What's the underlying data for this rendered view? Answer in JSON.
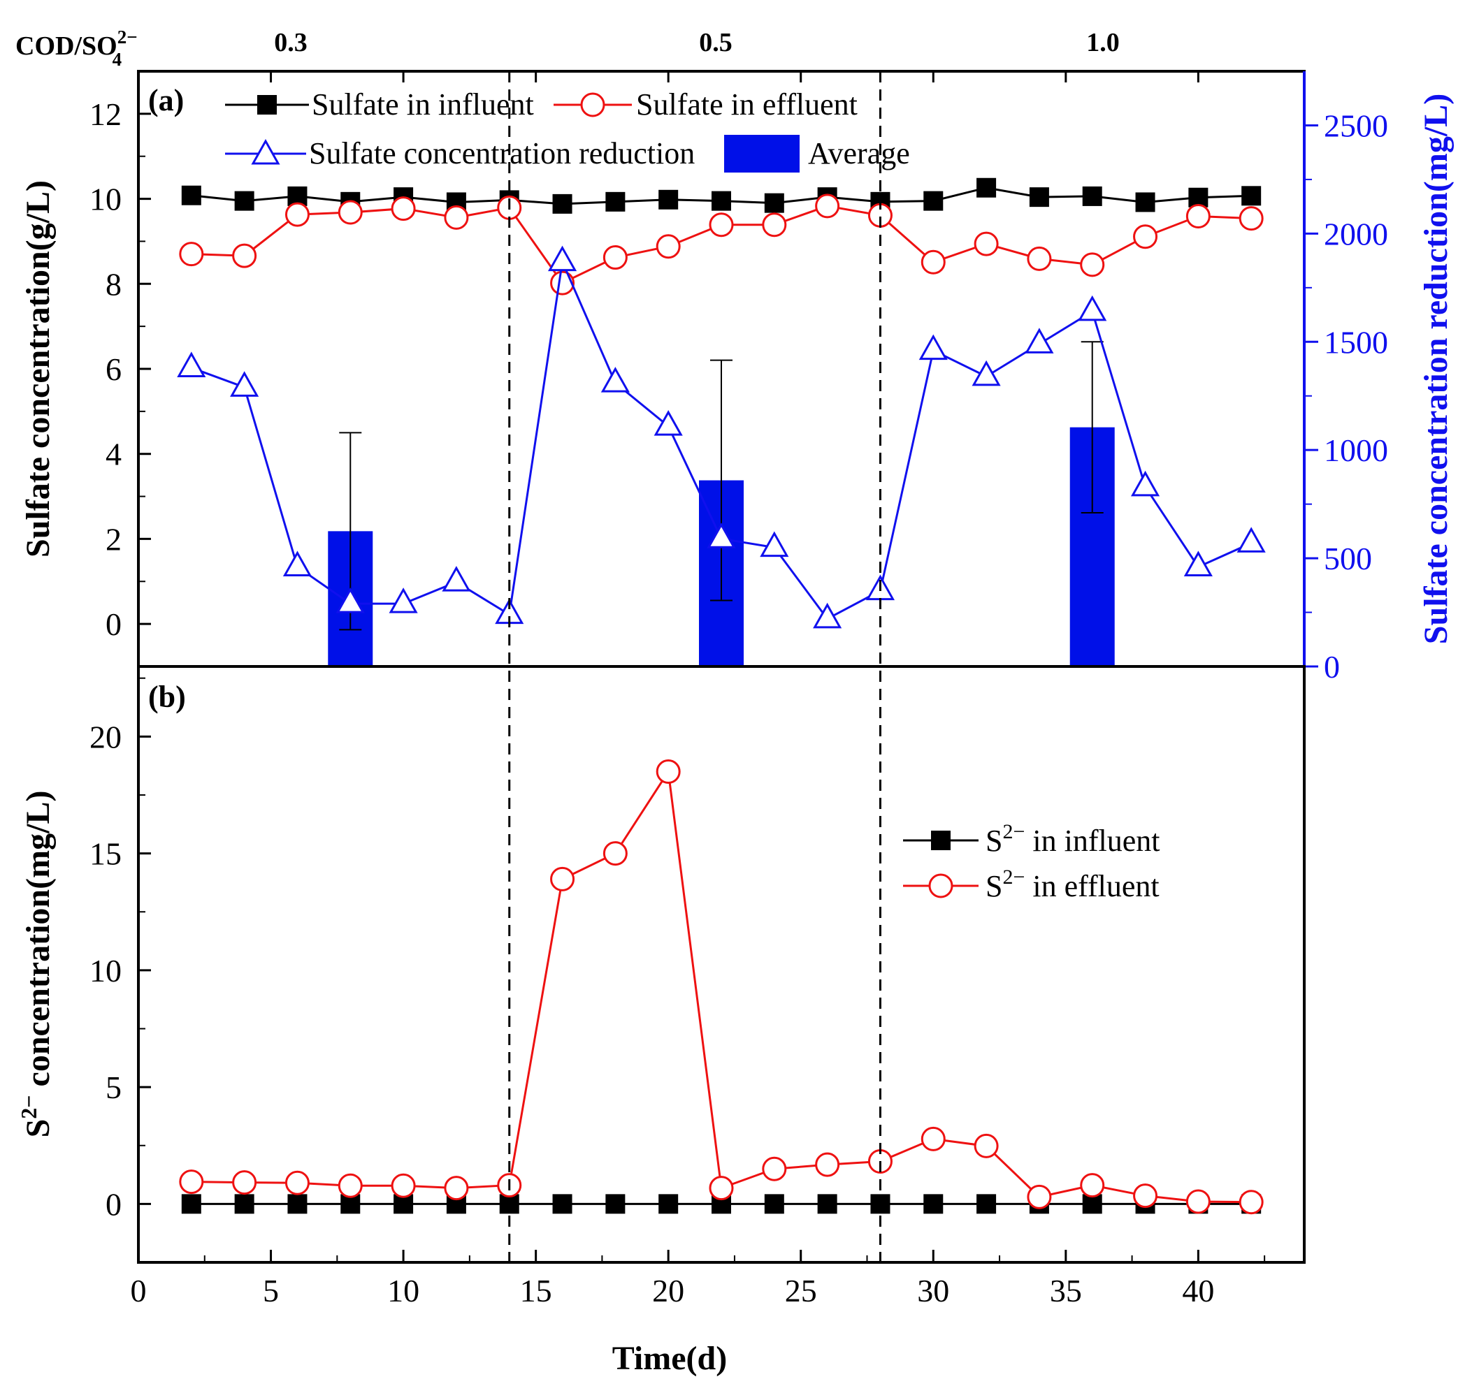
{
  "colors": {
    "influent": "#000000",
    "effluent": "#ee1111",
    "reduction": "#1010ee",
    "bar": "#0010e8",
    "frame": "#000000"
  },
  "ratio_header": {
    "label_main": "COD/SO",
    "label_sup": "2−",
    "label_sub": "4",
    "phases": [
      "0.3",
      "0.5",
      "1.0"
    ]
  },
  "chart_data": [
    {
      "id": "a",
      "panel_label": "(a)",
      "type": "line",
      "ylabel_left": "Sulfate concentration(g/L)",
      "ylabel_right": "Sulfate concentration reduction(mg/L)",
      "ylim_left": [
        -1,
        13
      ],
      "yticks_left": [
        0,
        2,
        4,
        6,
        8,
        10,
        12
      ],
      "ylim_right": [
        0,
        2750
      ],
      "yticks_right": [
        0,
        500,
        1000,
        1500,
        2000,
        2500
      ],
      "x": [
        2,
        4,
        6,
        8,
        10,
        12,
        14,
        16,
        18,
        20,
        22,
        24,
        26,
        28,
        30,
        32,
        34,
        36,
        38,
        40,
        42
      ],
      "series": [
        {
          "name": "Sulfate in influent",
          "axis": "left",
          "marker": "square",
          "values": [
            10.08,
            9.95,
            10.06,
            9.93,
            10.04,
            9.92,
            9.97,
            9.88,
            9.93,
            9.98,
            9.95,
            9.9,
            10.04,
            9.93,
            9.95,
            10.26,
            10.04,
            10.06,
            9.92,
            10.03,
            10.07
          ]
        },
        {
          "name": "Sulfate in effluent",
          "axis": "left",
          "marker": "circle",
          "values": [
            8.7,
            8.66,
            9.63,
            9.68,
            9.77,
            9.56,
            9.79,
            8.02,
            8.62,
            8.88,
            9.39,
            9.39,
            9.83,
            9.61,
            8.51,
            8.94,
            8.59,
            8.45,
            9.11,
            9.59,
            9.54
          ]
        },
        {
          "name": "Sulfate concentration reduction",
          "axis": "right",
          "marker": "triangle",
          "values": [
            1380,
            1290,
            460,
            290,
            290,
            390,
            240,
            1870,
            1310,
            1110,
            590,
            550,
            220,
            350,
            1460,
            1340,
            1490,
            1640,
            830,
            460,
            570
          ]
        }
      ],
      "bars": {
        "name": "Average",
        "axis": "right",
        "x": [
          8,
          22,
          36
        ],
        "values": [
          625,
          860,
          1105
        ],
        "error": [
          455,
          555,
          395
        ]
      },
      "phase_boundaries": [
        14,
        28
      ]
    },
    {
      "id": "b",
      "panel_label": "(b)",
      "type": "line",
      "xlabel": "Time(d)",
      "ylabel_main": "S",
      "ylabel_sup": "2−",
      "ylabel_rest": " concentration(mg/L)",
      "xlim": [
        0,
        44
      ],
      "xticks": [
        0,
        5,
        10,
        15,
        20,
        25,
        30,
        35,
        40
      ],
      "ylim": [
        -2.5,
        23
      ],
      "yticks": [
        0,
        5,
        10,
        15,
        20
      ],
      "x": [
        2,
        4,
        6,
        8,
        10,
        12,
        14,
        16,
        18,
        20,
        22,
        24,
        26,
        28,
        30,
        32,
        34,
        36,
        38,
        40,
        42
      ],
      "series": [
        {
          "name": "S2− in influent",
          "label_main": "S",
          "label_sup": "2−",
          "label_rest": " in influent",
          "marker": "square",
          "values": [
            0,
            0,
            0,
            0,
            0,
            0,
            0,
            0,
            0,
            0,
            0,
            0,
            0,
            0,
            0,
            0,
            0,
            0,
            0,
            0,
            0
          ]
        },
        {
          "name": "S2− in effluent",
          "label_main": "S",
          "label_sup": "2−",
          "label_rest": " in effluent",
          "marker": "circle",
          "values": [
            0.95,
            0.92,
            0.9,
            0.78,
            0.78,
            0.68,
            0.8,
            13.9,
            15.0,
            18.5,
            0.68,
            1.5,
            1.68,
            1.82,
            2.78,
            2.48,
            0.3,
            0.8,
            0.35,
            0.1,
            0.08
          ]
        }
      ],
      "phase_boundaries": [
        14,
        28
      ]
    }
  ]
}
